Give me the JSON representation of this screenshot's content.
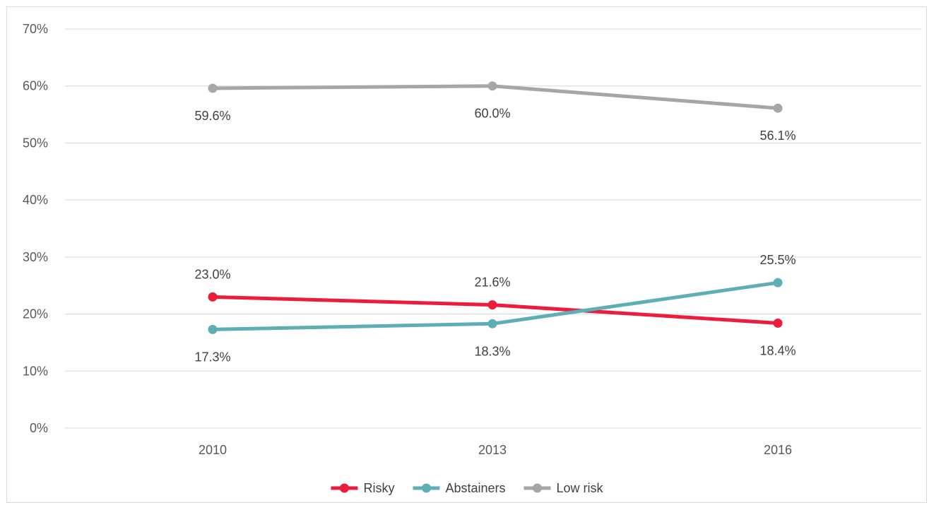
{
  "chart_data": {
    "type": "line",
    "title": "",
    "xlabel": "",
    "ylabel": "",
    "categories": [
      "2010",
      "2013",
      "2016"
    ],
    "ylim": [
      0,
      0.7
    ],
    "y_ticks": [
      "0%",
      "10%",
      "20%",
      "30%",
      "40%",
      "50%",
      "60%",
      "70%"
    ],
    "grid": true,
    "legend_position": "bottom",
    "series": [
      {
        "name": "Risky",
        "color": "#ee1c3b",
        "values": [
          0.23,
          0.216,
          0.184
        ],
        "labels": [
          "23.0%",
          "21.6%",
          "18.4%"
        ],
        "label_positions": [
          "above",
          "above",
          "below"
        ]
      },
      {
        "name": "Abstainers",
        "color": "#5eaeb5",
        "values": [
          0.173,
          0.183,
          0.255
        ],
        "labels": [
          "17.3%",
          "18.3%",
          "25.5%"
        ],
        "label_positions": [
          "below",
          "below",
          "above"
        ]
      },
      {
        "name": "Low risk",
        "color": "#a6a6a6",
        "values": [
          0.596,
          0.6,
          0.561
        ],
        "labels": [
          "59.6%",
          "60.0%",
          "56.1%"
        ],
        "label_positions": [
          "below",
          "below",
          "below"
        ]
      }
    ]
  }
}
